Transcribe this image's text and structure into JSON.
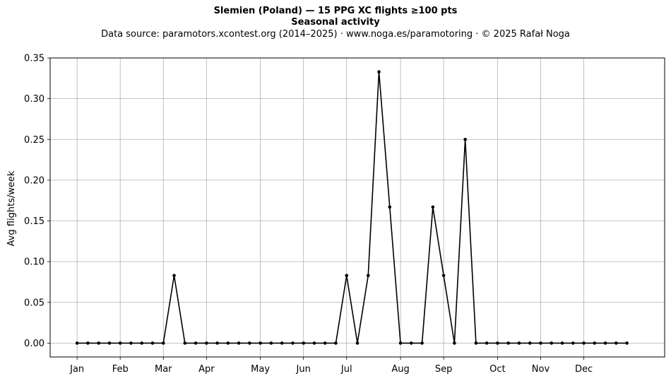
{
  "header": {
    "title": "Slemien (Poland)  —  15 PPG XC flights ≥100 pts",
    "subtitle": "Seasonal activity",
    "source": "Data source: paramotors.xcontest.org (2014–2025)  ·  www.noga.es/paramotoring  ·  © 2025 Rafał Noga"
  },
  "chart_data": {
    "type": "line",
    "title": "Slemien (Poland)  —  15 PPG XC flights ≥100 pts",
    "subtitle": "Seasonal activity",
    "xlabel": "",
    "ylabel": "Avg flights/week",
    "x_unit": "week",
    "x": [
      1,
      2,
      3,
      4,
      5,
      6,
      7,
      8,
      9,
      10,
      11,
      12,
      13,
      14,
      15,
      16,
      17,
      18,
      19,
      20,
      21,
      22,
      23,
      24,
      25,
      26,
      27,
      28,
      29,
      30,
      31,
      32,
      33,
      34,
      35,
      36,
      37,
      38,
      39,
      40,
      41,
      42,
      43,
      44,
      45,
      46,
      47,
      48,
      49,
      50,
      51,
      52
    ],
    "series": [
      {
        "values": [
          0,
          0,
          0,
          0,
          0,
          0,
          0,
          0,
          0,
          0.083,
          0,
          0,
          0,
          0,
          0,
          0,
          0,
          0,
          0,
          0,
          0,
          0,
          0,
          0,
          0,
          0.083,
          0,
          0.083,
          0.333,
          0.167,
          0,
          0,
          0,
          0.167,
          0.083,
          0,
          0.25,
          0,
          0,
          0,
          0,
          0,
          0,
          0,
          0,
          0,
          0,
          0,
          0,
          0,
          0,
          0
        ],
        "color": "#000000"
      }
    ],
    "month_ticks": [
      {
        "label": "Jan",
        "week": 1
      },
      {
        "label": "Feb",
        "week": 5
      },
      {
        "label": "Mar",
        "week": 9
      },
      {
        "label": "Apr",
        "week": 13
      },
      {
        "label": "May",
        "week": 18
      },
      {
        "label": "Jun",
        "week": 22
      },
      {
        "label": "Jul",
        "week": 26
      },
      {
        "label": "Aug",
        "week": 31
      },
      {
        "label": "Sep",
        "week": 35
      },
      {
        "label": "Oct",
        "week": 40
      },
      {
        "label": "Nov",
        "week": 44
      },
      {
        "label": "Dec",
        "week": 48
      }
    ],
    "yticks": [
      0,
      0.05,
      0.1,
      0.15,
      0.2,
      0.25,
      0.3,
      0.35
    ],
    "ytick_labels": [
      "0.00",
      "0.05",
      "0.10",
      "0.15",
      "0.20",
      "0.25",
      "0.30",
      "0.35"
    ],
    "xlim": [
      -1.5,
      55.5
    ],
    "ylim": [
      -0.017,
      0.35
    ],
    "grid": true,
    "legend": "none"
  }
}
